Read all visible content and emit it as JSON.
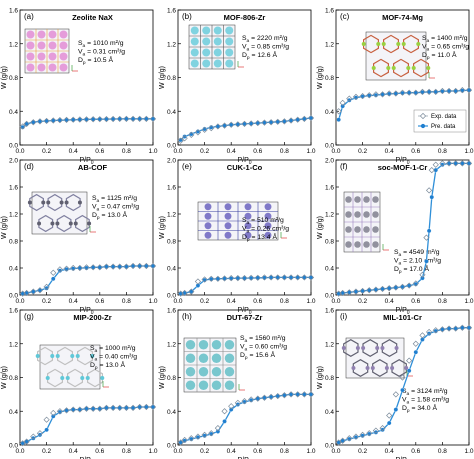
{
  "figure": {
    "colors": {
      "exp": "#7a8a9a",
      "pre": "#2f8fd8",
      "pre_fill": "#1f7fd0",
      "frame": "#000000"
    },
    "ylabel": "W (g/g)",
    "xlabel": "P/P0",
    "legend": [
      "Exp. data",
      "Pre. data"
    ],
    "x_ticks": [
      "0.0",
      "0.2",
      "0.4",
      "0.6",
      "0.8",
      "1.0"
    ],
    "y_ticks_row1": [
      "0.0",
      "0.4",
      "0.8",
      "1.2",
      "1.6"
    ],
    "y_ticks_row2": [
      "0.0",
      "0.4",
      "0.8",
      "1.2",
      "1.6",
      "2.0"
    ],
    "y_ticks_row3": [
      "0.0",
      "0.4",
      "0.8",
      "1.2",
      "1.6"
    ]
  },
  "chart_data": [
    {
      "type": "line",
      "letter": "(a)",
      "title": "Zeolite NaX",
      "ylim": [
        0,
        1.6
      ],
      "xlim": [
        0,
        1
      ],
      "props": [
        "S",
        "V",
        "D"
      ],
      "vals": [
        "1010 m²/g",
        "0.31 cm³/g",
        "10.5 Å"
      ],
      "x": [
        0.02,
        0.05,
        0.1,
        0.15,
        0.2,
        0.25,
        0.3,
        0.35,
        0.4,
        0.45,
        0.5,
        0.55,
        0.6,
        0.65,
        0.7,
        0.75,
        0.8,
        0.85,
        0.9,
        0.95,
        1.0
      ],
      "series": [
        {
          "name": "Exp. data",
          "values": [
            0.22,
            0.25,
            0.27,
            0.28,
            0.285,
            0.29,
            0.295,
            0.298,
            0.3,
            0.302,
            0.304,
            0.305,
            0.306,
            0.307,
            0.308,
            0.309,
            0.31,
            0.31,
            0.31,
            0.31,
            0.31
          ]
        },
        {
          "name": "Pre. data",
          "values": [
            0.21,
            0.25,
            0.27,
            0.28,
            0.285,
            0.29,
            0.293,
            0.296,
            0.299,
            0.301,
            0.303,
            0.305,
            0.306,
            0.307,
            0.308,
            0.309,
            0.31,
            0.31,
            0.31,
            0.31,
            0.31
          ]
        }
      ]
    },
    {
      "type": "line",
      "letter": "(b)",
      "title": "MOF-806-Zr",
      "ylim": [
        0,
        1.6
      ],
      "xlim": [
        0,
        1
      ],
      "props": [
        "S",
        "V",
        "D"
      ],
      "vals": [
        "2220 m²/g",
        "0.85 cm³/g",
        "12.6 Å"
      ],
      "x": [
        0.02,
        0.05,
        0.1,
        0.15,
        0.2,
        0.25,
        0.3,
        0.35,
        0.4,
        0.45,
        0.5,
        0.55,
        0.6,
        0.65,
        0.7,
        0.75,
        0.8,
        0.85,
        0.9,
        0.95,
        1.0
      ],
      "series": [
        {
          "name": "Exp. data",
          "values": [
            0.05,
            0.08,
            0.12,
            0.15,
            0.18,
            0.2,
            0.22,
            0.23,
            0.24,
            0.245,
            0.25,
            0.255,
            0.26,
            0.265,
            0.27,
            0.275,
            0.28,
            0.29,
            0.3,
            0.31,
            0.32
          ]
        },
        {
          "name": "Pre. data",
          "values": [
            0.06,
            0.1,
            0.13,
            0.16,
            0.19,
            0.21,
            0.22,
            0.23,
            0.24,
            0.245,
            0.25,
            0.255,
            0.26,
            0.265,
            0.27,
            0.275,
            0.28,
            0.29,
            0.3,
            0.31,
            0.32
          ]
        }
      ]
    },
    {
      "type": "line",
      "letter": "(c)",
      "title": "MOF-74-Mg",
      "ylim": [
        0,
        1.6
      ],
      "xlim": [
        0,
        1
      ],
      "props": [
        "S",
        "V",
        "D"
      ],
      "vals": [
        "1400 m²/g",
        "0.65 cm³/g",
        "11.0 Å"
      ],
      "x": [
        0.02,
        0.05,
        0.1,
        0.15,
        0.2,
        0.25,
        0.3,
        0.35,
        0.4,
        0.45,
        0.5,
        0.55,
        0.6,
        0.65,
        0.7,
        0.75,
        0.8,
        0.85,
        0.9,
        0.95,
        1.0
      ],
      "series": [
        {
          "name": "Exp. data",
          "values": [
            0.4,
            0.5,
            0.55,
            0.57,
            0.58,
            0.59,
            0.6,
            0.6,
            0.61,
            0.61,
            0.62,
            0.62,
            0.62,
            0.63,
            0.63,
            0.63,
            0.64,
            0.64,
            0.64,
            0.65,
            0.65
          ]
        },
        {
          "name": "Pre. data",
          "values": [
            0.3,
            0.46,
            0.53,
            0.56,
            0.575,
            0.585,
            0.59,
            0.6,
            0.605,
            0.61,
            0.615,
            0.62,
            0.62,
            0.625,
            0.63,
            0.63,
            0.635,
            0.64,
            0.64,
            0.645,
            0.65
          ]
        }
      ]
    },
    {
      "type": "line",
      "letter": "(d)",
      "title": "AB-COF",
      "ylim": [
        0,
        2.0
      ],
      "xlim": [
        0,
        1
      ],
      "props": [
        "S",
        "V",
        "D"
      ],
      "vals": [
        "1125 m²/g",
        "0.47 cm³/g",
        "13.0 Å"
      ],
      "x": [
        0.02,
        0.05,
        0.1,
        0.15,
        0.2,
        0.25,
        0.3,
        0.35,
        0.4,
        0.45,
        0.5,
        0.55,
        0.6,
        0.65,
        0.7,
        0.75,
        0.8,
        0.85,
        0.9,
        0.95,
        1.0
      ],
      "series": [
        {
          "name": "Exp. data",
          "values": [
            0.02,
            0.03,
            0.05,
            0.07,
            0.12,
            0.33,
            0.38,
            0.39,
            0.4,
            0.4,
            0.41,
            0.41,
            0.41,
            0.42,
            0.42,
            0.42,
            0.42,
            0.43,
            0.43,
            0.43,
            0.43
          ]
        },
        {
          "name": "Pre. data",
          "values": [
            0.02,
            0.03,
            0.05,
            0.07,
            0.1,
            0.24,
            0.36,
            0.38,
            0.39,
            0.4,
            0.4,
            0.41,
            0.41,
            0.42,
            0.42,
            0.42,
            0.42,
            0.43,
            0.43,
            0.43,
            0.43
          ]
        }
      ]
    },
    {
      "type": "line",
      "letter": "(e)",
      "title": "CUK-1-Co",
      "ylim": [
        0,
        2.0
      ],
      "xlim": [
        0,
        1
      ],
      "props": [
        "S",
        "V",
        "D"
      ],
      "vals": [
        "510 m²/g",
        "0.26 cm³/g",
        "13.4 Å"
      ],
      "x": [
        0.02,
        0.05,
        0.1,
        0.15,
        0.2,
        0.25,
        0.3,
        0.35,
        0.4,
        0.45,
        0.5,
        0.55,
        0.6,
        0.65,
        0.7,
        0.75,
        0.8,
        0.85,
        0.9,
        0.95,
        1.0
      ],
      "series": [
        {
          "name": "Exp. data",
          "values": [
            0.02,
            0.03,
            0.05,
            0.2,
            0.23,
            0.24,
            0.24,
            0.245,
            0.25,
            0.25,
            0.25,
            0.255,
            0.255,
            0.26,
            0.26,
            0.26,
            0.26,
            0.26,
            0.26,
            0.26,
            0.26
          ]
        },
        {
          "name": "Pre. data",
          "values": [
            0.02,
            0.03,
            0.05,
            0.14,
            0.22,
            0.235,
            0.24,
            0.245,
            0.245,
            0.25,
            0.25,
            0.25,
            0.255,
            0.255,
            0.26,
            0.26,
            0.26,
            0.26,
            0.26,
            0.26,
            0.26
          ]
        }
      ]
    },
    {
      "type": "line",
      "letter": "(f)",
      "title": "soc-MOF-1-Cr",
      "ylim": [
        0,
        2.0
      ],
      "xlim": [
        0,
        1
      ],
      "props": [
        "S",
        "V",
        "D"
      ],
      "vals": [
        "4549 m²/g",
        "2.10 cm³/g",
        "17.0 Å"
      ],
      "x": [
        0.02,
        0.05,
        0.1,
        0.15,
        0.2,
        0.25,
        0.3,
        0.35,
        0.4,
        0.45,
        0.5,
        0.55,
        0.6,
        0.65,
        0.68,
        0.7,
        0.72,
        0.75,
        0.8,
        0.85,
        0.9,
        0.95,
        1.0
      ],
      "series": [
        {
          "name": "Exp. data",
          "values": [
            0.02,
            0.03,
            0.04,
            0.05,
            0.06,
            0.07,
            0.08,
            0.09,
            0.1,
            0.11,
            0.12,
            0.14,
            0.17,
            0.3,
            0.85,
            1.55,
            1.85,
            1.93,
            1.95,
            1.95,
            1.95,
            1.95,
            1.95
          ]
        },
        {
          "name": "Pre. data",
          "values": [
            0.02,
            0.03,
            0.04,
            0.05,
            0.06,
            0.07,
            0.08,
            0.09,
            0.1,
            0.11,
            0.12,
            0.14,
            0.16,
            0.25,
            0.5,
            0.95,
            1.45,
            1.85,
            1.93,
            1.95,
            1.95,
            1.95,
            1.95
          ]
        }
      ]
    },
    {
      "type": "line",
      "letter": "(g)",
      "title": "MIP-200-Zr",
      "ylim": [
        0,
        1.6
      ],
      "xlim": [
        0,
        1
      ],
      "props": [
        "S",
        "V",
        "D"
      ],
      "vals": [
        "1000 m²/g",
        "0.40 cm³/g",
        "13.0 Å"
      ],
      "x": [
        0.02,
        0.05,
        0.1,
        0.15,
        0.2,
        0.25,
        0.3,
        0.35,
        0.4,
        0.45,
        0.5,
        0.55,
        0.6,
        0.65,
        0.7,
        0.75,
        0.8,
        0.85,
        0.9,
        0.95,
        1.0
      ],
      "series": [
        {
          "name": "Exp. data",
          "values": [
            0.02,
            0.04,
            0.1,
            0.14,
            0.3,
            0.38,
            0.4,
            0.41,
            0.42,
            0.42,
            0.43,
            0.43,
            0.43,
            0.44,
            0.44,
            0.44,
            0.44,
            0.44,
            0.45,
            0.45,
            0.45
          ]
        },
        {
          "name": "Pre. data",
          "values": [
            0.02,
            0.04,
            0.08,
            0.12,
            0.18,
            0.34,
            0.39,
            0.41,
            0.42,
            0.42,
            0.43,
            0.43,
            0.43,
            0.44,
            0.44,
            0.44,
            0.44,
            0.44,
            0.45,
            0.45,
            0.45
          ]
        }
      ]
    },
    {
      "type": "line",
      "letter": "(h)",
      "title": "DUT-67-Zr",
      "ylim": [
        0,
        1.6
      ],
      "xlim": [
        0,
        1
      ],
      "props": [
        "S",
        "V",
        "D"
      ],
      "vals": [
        "1560 m²/g",
        "0.60 cm³/g",
        "15.6 Å"
      ],
      "x": [
        0.02,
        0.05,
        0.1,
        0.15,
        0.2,
        0.25,
        0.3,
        0.35,
        0.4,
        0.45,
        0.5,
        0.55,
        0.6,
        0.65,
        0.7,
        0.75,
        0.8,
        0.85,
        0.9,
        0.95,
        1.0
      ],
      "series": [
        {
          "name": "Exp. data",
          "values": [
            0.03,
            0.06,
            0.08,
            0.1,
            0.12,
            0.14,
            0.2,
            0.4,
            0.46,
            0.5,
            0.52,
            0.54,
            0.55,
            0.56,
            0.57,
            0.58,
            0.59,
            0.6,
            0.6,
            0.6,
            0.6
          ]
        },
        {
          "name": "Pre. data",
          "values": [
            0.03,
            0.05,
            0.07,
            0.09,
            0.11,
            0.13,
            0.16,
            0.28,
            0.42,
            0.48,
            0.51,
            0.53,
            0.55,
            0.56,
            0.57,
            0.58,
            0.59,
            0.6,
            0.6,
            0.6,
            0.6
          ]
        }
      ]
    },
    {
      "type": "line",
      "letter": "(i)",
      "title": "MIL-101-Cr",
      "ylim": [
        0,
        1.6
      ],
      "xlim": [
        0,
        1
      ],
      "props": [
        "S",
        "V",
        "D"
      ],
      "vals": [
        "3124 m²/g",
        "1.58 cm³/g",
        "34.0 Å"
      ],
      "x": [
        0.02,
        0.05,
        0.1,
        0.15,
        0.2,
        0.25,
        0.3,
        0.35,
        0.4,
        0.45,
        0.5,
        0.55,
        0.6,
        0.65,
        0.7,
        0.75,
        0.8,
        0.85,
        0.9,
        0.95,
        1.0
      ],
      "series": [
        {
          "name": "Exp. data",
          "values": [
            0.03,
            0.05,
            0.08,
            0.1,
            0.12,
            0.14,
            0.17,
            0.2,
            0.35,
            0.6,
            0.8,
            1.0,
            1.2,
            1.3,
            1.34,
            1.36,
            1.37,
            1.38,
            1.38,
            1.39,
            1.39
          ]
        },
        {
          "name": "Pre. data",
          "values": [
            0.03,
            0.05,
            0.07,
            0.09,
            0.11,
            0.13,
            0.15,
            0.18,
            0.26,
            0.42,
            0.65,
            0.88,
            1.1,
            1.25,
            1.32,
            1.35,
            1.37,
            1.38,
            1.38,
            1.39,
            1.39
          ]
        }
      ]
    }
  ]
}
